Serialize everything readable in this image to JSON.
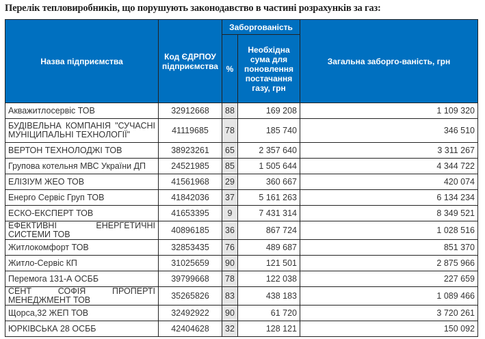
{
  "title": "Перелік тепловиробників, що порушують законодавство в частині розрахунків за газ:",
  "headers": {
    "name": "Назва підприємства",
    "code": "Код ЄДРПОУ підприємства",
    "debt_group": "Заборгованість",
    "pct": "%",
    "required_sum": "Необхідна сума для поновлення постачання газу, грн",
    "total_debt": "Загальна заборго-ваність, грн"
  },
  "rows": [
    {
      "name": "Акважитлосервіс ТОВ",
      "code": "32912668",
      "pct": "88",
      "required": "169 208",
      "total": "1 109 320"
    },
    {
      "name": "БУДІВЕЛЬНА КОМПАНІЯ \"СУЧАСНІ МУНІЦИПАЛЬНІ ТЕХНОЛОГІЇ\"",
      "code": "41119685",
      "pct": "78",
      "required": "185 740",
      "total": "346 510"
    },
    {
      "name": "ВЕРТОН ТЕХНОЛОДЖІ ТОВ",
      "code": "38923261",
      "pct": "65",
      "required": "2 357 640",
      "total": "3 311 267"
    },
    {
      "name": "Групова котельня МВС України ДП",
      "code": "24521985",
      "pct": "85",
      "required": "1 505 644",
      "total": "4 344 722"
    },
    {
      "name": "ЕЛІЗІУМ ЖЕО ТОВ",
      "code": "41561968",
      "pct": "29",
      "required": "360 667",
      "total": "420 074"
    },
    {
      "name": "Енерго Сервіс Груп ТОВ",
      "code": "41842036",
      "pct": "37",
      "required": "5 161 263",
      "total": "6 134 234"
    },
    {
      "name": "ЕСКО-ЕКСПЕРТ ТОВ",
      "code": "41653395",
      "pct": "9",
      "required": "7 431 314",
      "total": "8 349 521"
    },
    {
      "name": "ЕФЕКТИВНІ ЕНЕРГЕТИЧНІ СИСТЕМИ ТОВ",
      "code": "40896185",
      "pct": "36",
      "required": "867 724",
      "total": "1 028 516"
    },
    {
      "name": "Житлокомфорт ТОВ",
      "code": "32853435",
      "pct": "76",
      "required": "489 687",
      "total": "851 370"
    },
    {
      "name": "Житло-Сервіс КП",
      "code": "31025659",
      "pct": "90",
      "required": "121 501",
      "total": "2 875 966"
    },
    {
      "name": "Перемога 131-А ОСББ",
      "code": "39799668",
      "pct": "78",
      "required": "122 038",
      "total": "227 659"
    },
    {
      "name": "СЕНТ СОФІЯ ПРОПЕРТІ МЕНЕДЖМЕНТ ТОВ",
      "code": "35265826",
      "pct": "83",
      "required": "438 183",
      "total": "1 089 466"
    },
    {
      "name": "Щорса,32 ЖЕП ТОВ",
      "code": "32492922",
      "pct": "90",
      "required": "61 720",
      "total": "3 720 261"
    },
    {
      "name": "ЮРКІВСЬКА 28 ОСББ",
      "code": "42404628",
      "pct": "32",
      "required": "128 121",
      "total": "150 092"
    }
  ]
}
